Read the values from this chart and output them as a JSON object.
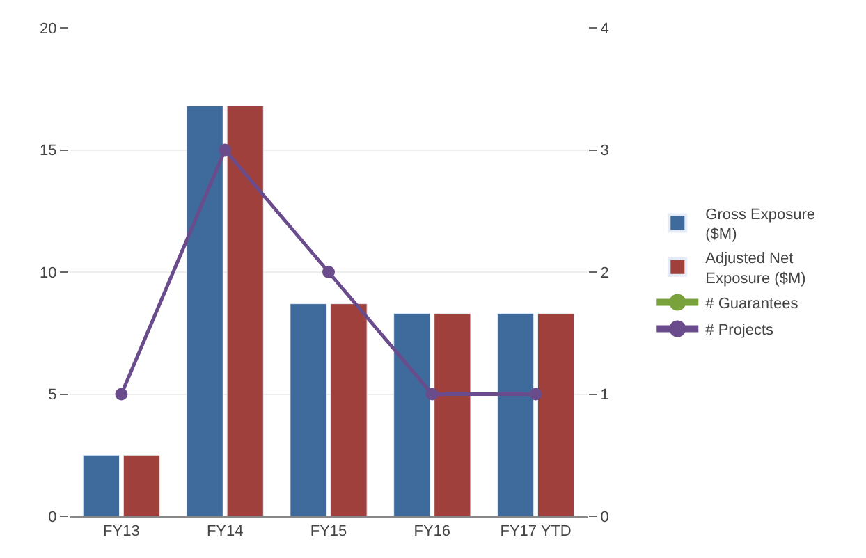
{
  "chart_data": {
    "type": "bar",
    "categories": [
      "FY13",
      "FY14",
      "FY15",
      "FY16",
      "FY17 YTD"
    ],
    "series": [
      {
        "name": "Gross Exposure ($M)",
        "color": "#3f6a9c",
        "values": [
          2.5,
          16.8,
          8.7,
          8.3,
          8.3
        ]
      },
      {
        "name": "Adjusted Net Exposure ($M)",
        "color": "#a0403c",
        "values": [
          2.5,
          16.8,
          8.7,
          8.3,
          8.3
        ]
      },
      {
        "name": "# Guarantees",
        "type": "line",
        "axis": "y2",
        "color": "#7aa23c",
        "values": [
          null,
          null,
          null,
          null,
          null
        ]
      },
      {
        "name": "# Projects",
        "type": "line",
        "axis": "y2",
        "color": "#6a4c8c",
        "values": [
          1,
          3,
          2,
          1,
          1
        ]
      }
    ],
    "ylim": [
      0,
      20
    ],
    "yticks": [
      0,
      5,
      10,
      15,
      20
    ],
    "y2lim": [
      0,
      4
    ],
    "y2ticks": [
      0,
      1,
      2,
      3,
      4
    ],
    "grid": "y",
    "legend": "right",
    "marker": "circle"
  }
}
